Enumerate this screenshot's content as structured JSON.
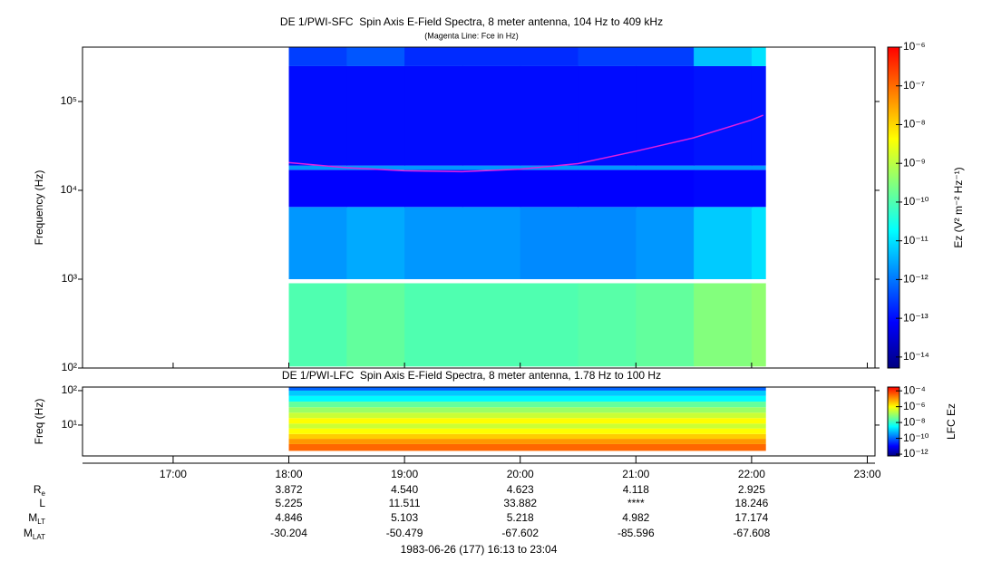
{
  "chart_data": [
    {
      "type": "spectrogram",
      "title": "DE 1/PWI-SFC  Spin Axis E-Field Spectra, 8 meter antenna, 104 Hz to 409 kHz",
      "subtitle": "(Magenta Line: Fce in Hz)",
      "ylabel": "Frequency (Hz)",
      "log_y": true,
      "xlim": [
        16.2167,
        23.0667
      ],
      "ylim": [
        100,
        409000
      ],
      "yticks": [
        {
          "value": 100,
          "label": "10²"
        },
        {
          "value": 1000,
          "label": "10³"
        },
        {
          "value": 10000,
          "label": "10⁴"
        },
        {
          "value": 100000,
          "label": "10⁵"
        }
      ],
      "time_edges": [
        18.0,
        18.5,
        19.0,
        19.5,
        20.0,
        20.5,
        21.0,
        21.5,
        22.0,
        22.12
      ],
      "freq_bands": [
        [
          104,
          900
        ],
        [
          1000,
          6500
        ],
        [
          6500,
          17000
        ],
        [
          17000,
          19000
        ],
        [
          19000,
          250000
        ],
        [
          250000,
          409000
        ]
      ],
      "z": [
        [
          1e-10,
          1.5e-10,
          1e-10,
          1e-10,
          1e-10,
          1.2e-10,
          1.5e-10,
          3e-10,
          4e-10
        ],
        [
          2e-12,
          3e-12,
          2e-12,
          2e-12,
          1.5e-12,
          1.5e-12,
          2e-12,
          6e-12,
          1e-11
        ],
        [
          8e-14,
          8e-14,
          8e-14,
          8e-14,
          8e-14,
          8e-14,
          8e-14,
          9e-14,
          9e-14
        ],
        [
          2e-12,
          2e-12,
          2e-12,
          2e-12,
          2e-12,
          2e-12,
          2e-12,
          2e-12,
          2e-12
        ],
        [
          1e-13,
          1e-13,
          1e-13,
          1e-13,
          1e-13,
          1e-13,
          1e-13,
          1.2e-13,
          1.2e-13
        ],
        [
          3e-13,
          5e-13,
          2e-13,
          2e-13,
          2e-13,
          3e-13,
          3e-13,
          5e-12,
          1e-11
        ]
      ],
      "fce": {
        "color": "#e020e0",
        "x": [
          18.0,
          18.5,
          19.0,
          19.5,
          20.0,
          20.5,
          21.0,
          21.5,
          22.0,
          22.1
        ],
        "y": [
          20500,
          18000,
          16600,
          16200,
          17300,
          20000,
          27600,
          39000,
          62000,
          70000
        ]
      },
      "colorbar": {
        "label": "Ez (V² m⁻² Hz⁻¹)",
        "log": true,
        "clim": [
          5.2e-15,
          1e-06
        ],
        "colors": [
          "#000080",
          "#0000ff",
          "#0080ff",
          "#00ffff",
          "#80ff80",
          "#ffff00",
          "#ff8000",
          "#ff0000"
        ],
        "ticks": [
          {
            "value": 1e-14,
            "label": "10⁻¹⁴"
          },
          {
            "value": 1e-13,
            "label": "10⁻¹³"
          },
          {
            "value": 1e-12,
            "label": "10⁻¹²"
          },
          {
            "value": 1e-11,
            "label": "10⁻¹¹"
          },
          {
            "value": 1e-10,
            "label": "10⁻¹⁰"
          },
          {
            "value": 1e-09,
            "label": "10⁻⁹"
          },
          {
            "value": 1e-08,
            "label": "10⁻⁸"
          },
          {
            "value": 1e-07,
            "label": "10⁻⁷"
          },
          {
            "value": 1e-06,
            "label": "10⁻⁶"
          }
        ]
      }
    },
    {
      "type": "spectrogram",
      "title": "DE 1/PWI-LFC  Spin Axis E-Field Spectra, 8 meter antenna, 1.78 Hz to 100 Hz",
      "ylabel": "Freq (Hz)",
      "log_y": true,
      "xlim": [
        16.2167,
        23.0667
      ],
      "ylim": [
        1.27,
        127
      ],
      "yticks": [
        {
          "value": 10,
          "label": "10¹"
        },
        {
          "value": 100,
          "label": "10²"
        }
      ],
      "xticks": [
        {
          "value": 17,
          "label": "17:00"
        },
        {
          "value": 18,
          "label": "18:00"
        },
        {
          "value": 19,
          "label": "19:00"
        },
        {
          "value": 20,
          "label": "20:00"
        },
        {
          "value": 21,
          "label": "21:00"
        },
        {
          "value": 22,
          "label": "22:00"
        },
        {
          "value": 23,
          "label": "23:00"
        }
      ],
      "time_edges": [
        18.0,
        22.12
      ],
      "freq_bands": [
        [
          1.78,
          2.8
        ],
        [
          2.8,
          4
        ],
        [
          4,
          5.5
        ],
        [
          5.5,
          8
        ],
        [
          8,
          11
        ],
        [
          11,
          16
        ],
        [
          16,
          23
        ],
        [
          23,
          33
        ],
        [
          33,
          48
        ],
        [
          48,
          70
        ],
        [
          70,
          100
        ],
        [
          100,
          127
        ]
      ],
      "z": [
        [
          3e-05
        ],
        [
          1e-05
        ],
        [
          3e-06
        ],
        [
          1e-06
        ],
        [
          3e-07
        ],
        [
          1e-06
        ],
        [
          3e-07
        ],
        [
          1e-07
        ],
        [
          3e-08
        ],
        [
          3e-09
        ],
        [
          1e-09
        ],
        [
          1e-10
        ]
      ],
      "colorbar": {
        "label": "LFC Ez",
        "log": true,
        "clim": [
          6e-13,
          0.0003
        ],
        "colors": [
          "#000080",
          "#0000ff",
          "#0080ff",
          "#00ffff",
          "#80ff80",
          "#ffff00",
          "#ff8000",
          "#ff0000"
        ],
        "ticks": [
          {
            "value": 1e-12,
            "label": "10⁻¹²"
          },
          {
            "value": 1e-10,
            "label": "10⁻¹⁰"
          },
          {
            "value": 1e-08,
            "label": "10⁻⁸"
          },
          {
            "value": 1e-06,
            "label": "10⁻⁶"
          },
          {
            "value": 0.0001,
            "label": "10⁻⁴"
          }
        ]
      }
    }
  ],
  "ephemeris": {
    "rows": [
      {
        "label": "R",
        "sub": "e",
        "values": [
          "3.872",
          "4.540",
          "4.623",
          "4.118",
          "2.925"
        ]
      },
      {
        "label": "L",
        "values": [
          "5.225",
          "11.511",
          "33.882",
          "****",
          "18.246"
        ]
      },
      {
        "label": "M",
        "sub": "LT",
        "values": [
          "4.846",
          "5.103",
          "5.218",
          "4.982",
          "17.174"
        ]
      },
      {
        "label": "M",
        "sub": "LAT",
        "values": [
          "-30.204",
          "-50.479",
          "-67.602",
          "-85.596",
          "-67.608"
        ]
      }
    ]
  },
  "caption": "1983-06-26 (177) 16:13 to 23:04"
}
